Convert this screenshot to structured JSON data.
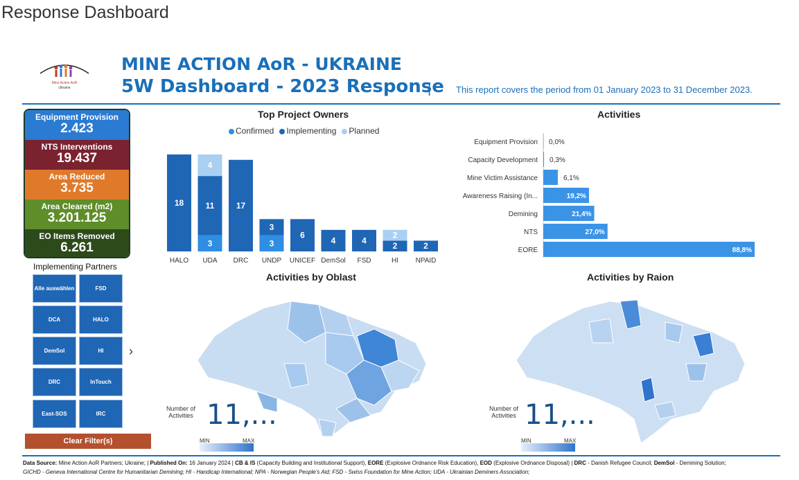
{
  "page_title": "Response Dashboard",
  "logo": {
    "line1": "Mine Action AoR",
    "line2": "Ukraine"
  },
  "header": {
    "title1": "MINE ACTION AoR - UKRAINE",
    "title2": "5W Dashboard - 2023 Response",
    "separator": "|",
    "period": "This report covers the period from 01 January 2023 to 31 December 2023."
  },
  "kpis": [
    {
      "label": "Equipment Provision",
      "value": "2.423",
      "color": "#2a7bd1"
    },
    {
      "label": "NTS Interventions",
      "value": "19.437",
      "color": "#7a2230"
    },
    {
      "label": "Area Reduced",
      "value": "3.735",
      "color": "#e07a2a"
    },
    {
      "label": "Area Cleared (m2)",
      "value": "3.201.125",
      "color": "#5e8d2a"
    },
    {
      "label": "EO Items Removed",
      "value": "6.261",
      "color": "#2d4a1b"
    }
  ],
  "implementing_partners": {
    "title": "Implementing Partners",
    "items": [
      "Alle auswählen",
      "FSD",
      "DCA",
      "HALO",
      "DemSol",
      "HI",
      "DRC",
      "InTouch",
      "East-SOS",
      "IRC"
    ],
    "next_icon": "›",
    "clear_label": "Clear Filter(s)"
  },
  "top_project_owners": {
    "title": "Top Project Owners",
    "legend": [
      {
        "name": "Confirmed",
        "color": "#2f8de4"
      },
      {
        "name": "Implementing",
        "color": "#1f66b5"
      },
      {
        "name": "Planned",
        "color": "#a9cff2"
      }
    ]
  },
  "activities": {
    "title": "Activities"
  },
  "maps": {
    "oblast_title": "Activities by Oblast",
    "raion_title": "Activities by Raion",
    "number_label_1": "Number of",
    "number_label_2": "Activities",
    "oblast_value": "11,...",
    "raion_value": "11,...",
    "min_label": "MIN",
    "max_label": "MAX"
  },
  "footer": {
    "line1_parts": [
      {
        "b": "Data Source:",
        "t": " Mine Action AoR Partners; Ukraine;   |   "
      },
      {
        "b": "Published On:",
        "t": " 16 January 2024   |   "
      },
      {
        "b": "CB & IS",
        "t": " (Capacity Building and Institutional Support), "
      },
      {
        "b": "EORE",
        "t": " (Explosive Ordnance Risk Education), "
      },
      {
        "b": "EOD",
        "t": " (Explosive Ordnance Disposal)   |   "
      },
      {
        "b": "DRC",
        "t": " - Danish Refugee Council; "
      },
      {
        "b": "DemSol",
        "t": " - Demining Solution;"
      }
    ],
    "line2": "GICHD - Geneva International Centre for Humanitarian Demining; HI - Handicap International; NPA - Norwegian People's Aid; FSD - Swiss Foundation for Mine Action; UDA - Ukrainian Deminers Association;"
  },
  "chart_data": [
    {
      "type": "bar",
      "title": "Top Project Owners",
      "categories": [
        "HALO",
        "UDA",
        "DRC",
        "UNDP",
        "UNICEF",
        "DemSol",
        "FSD",
        "HI",
        "NPAID"
      ],
      "series": [
        {
          "name": "Confirmed",
          "values": [
            0,
            3,
            0,
            3,
            0,
            0,
            0,
            0,
            0
          ]
        },
        {
          "name": "Implementing",
          "values": [
            18,
            11,
            17,
            3,
            6,
            4,
            4,
            2,
            2
          ]
        },
        {
          "name": "Planned",
          "values": [
            0,
            4,
            0,
            0,
            0,
            0,
            0,
            2,
            0
          ]
        }
      ],
      "stacked": true
    },
    {
      "type": "bar",
      "orientation": "horizontal",
      "title": "Activities",
      "categories": [
        "Equipment Provision",
        "Capacity Development",
        "Mine Victim Assistance",
        "Awareness Raising (In...",
        "Demining",
        "NTS",
        "EORE"
      ],
      "values": [
        0.0,
        0.3,
        6.1,
        19.2,
        21.4,
        27.0,
        88.8
      ],
      "value_labels": [
        "0,0%",
        "0,3%",
        "6,1%",
        "19,2%",
        "21,4%",
        "27,0%",
        "88,8%"
      ]
    }
  ]
}
